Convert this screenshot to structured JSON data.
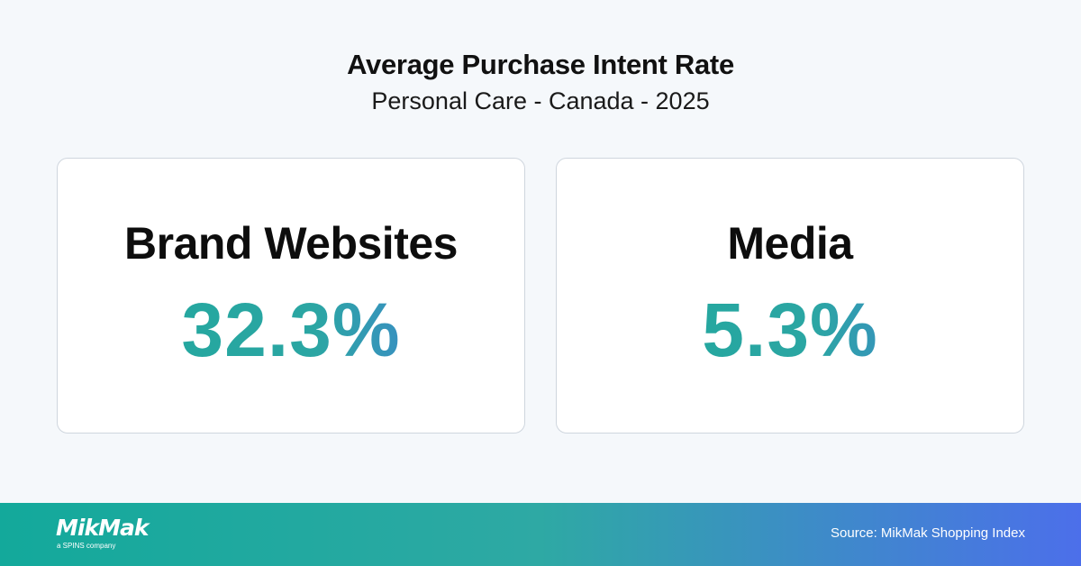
{
  "header": {
    "title": "Average Purchase Intent Rate",
    "subtitle": "Personal Care - Canada - 2025"
  },
  "cards": [
    {
      "label": "Brand Websites",
      "value": "32.3%"
    },
    {
      "label": "Media",
      "value": "5.3%"
    }
  ],
  "footer": {
    "logo_text": "MikMak",
    "logo_tagline": "a SPINS company",
    "source": "Source: MikMak Shopping Index"
  },
  "colors": {
    "background": "#f5f8fb",
    "value_gradient_start": "#1fa89c",
    "value_gradient_end": "#4a74e6",
    "footer_gradient_start": "#13a99b",
    "footer_gradient_end": "#4c6fea"
  }
}
